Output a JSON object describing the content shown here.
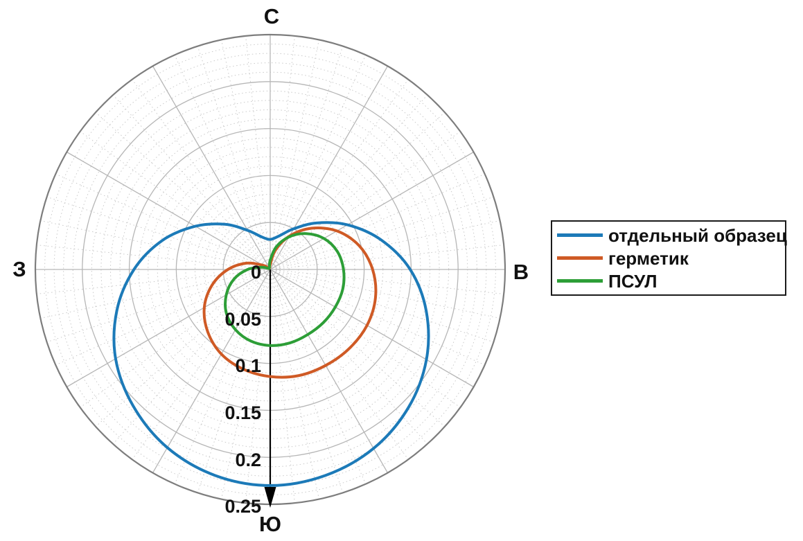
{
  "figure": {
    "background": "#ffffff",
    "grid": {
      "major_color": "#b6b6b6",
      "minor_color": "#c9c9c9",
      "boundary_color": "#7d7d7d",
      "axis_color": "#000000"
    }
  },
  "chart_data": {
    "type": "line",
    "subtype": "polar-directivity",
    "title": "",
    "compass": {
      "north": "С",
      "east": "В",
      "south": "Ю",
      "west": "З"
    },
    "r_ticks": [
      "0",
      "0.05",
      "0.1",
      "0.15",
      "0.2",
      "0.25"
    ],
    "r_tick_values": [
      0,
      0.05,
      0.1,
      0.15,
      0.2,
      0.25
    ],
    "r_max": 0.25,
    "r_minor_step": 0.01,
    "theta_major_step_deg": 30,
    "theta_minor_step_deg": 6,
    "r_axis_arrow": "south",
    "legend_position": "right",
    "angles_deg_from_north": [
      0,
      15,
      30,
      45,
      60,
      75,
      90,
      105,
      120,
      135,
      150,
      165,
      180,
      195,
      210,
      225,
      240,
      255,
      270,
      285,
      300,
      315,
      330,
      345
    ],
    "series": [
      {
        "name": "отдельный образец",
        "color": "#1c7ab8",
        "values": [
          0.032,
          0.037,
          0.05,
          0.07,
          0.095,
          0.122,
          0.149,
          0.172,
          0.192,
          0.208,
          0.22,
          0.227,
          0.23,
          0.227,
          0.219,
          0.206,
          0.19,
          0.169,
          0.145,
          0.119,
          0.092,
          0.068,
          0.048,
          0.036
        ]
      },
      {
        "name": "герметик",
        "color": "#cf5a25",
        "values": [
          0.005,
          0.021,
          0.041,
          0.062,
          0.082,
          0.098,
          0.109,
          0.116,
          0.119,
          0.119,
          0.118,
          0.117,
          0.114,
          0.11,
          0.104,
          0.094,
          0.081,
          0.064,
          0.045,
          0.026,
          0.009,
          0.002,
          0.002,
          0.002
        ]
      },
      {
        "name": "ПСУЛ",
        "color": "#2d9e37",
        "values": [
          0.01,
          0.025,
          0.04,
          0.054,
          0.066,
          0.074,
          0.078,
          0.08,
          0.08,
          0.08,
          0.08,
          0.081,
          0.081,
          0.079,
          0.074,
          0.066,
          0.054,
          0.04,
          0.024,
          0.009,
          0.002,
          0.002,
          0.002,
          0.003
        ]
      }
    ]
  }
}
